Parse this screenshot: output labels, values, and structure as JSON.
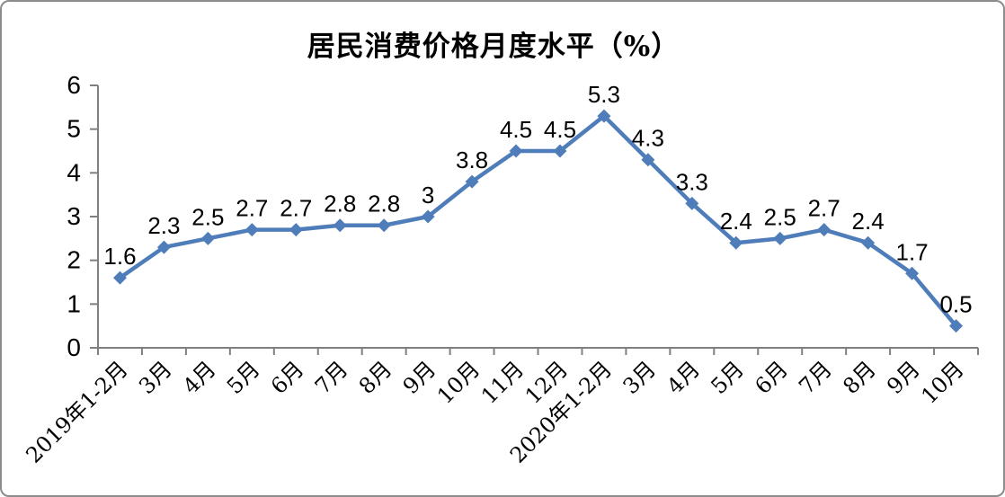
{
  "frame": {
    "background": "#FFFFFF",
    "border_color": "#8C8C8C"
  },
  "chart_data": {
    "type": "line",
    "title": "居民消费价格月度水平（%）",
    "categories": [
      "2019年1-2月",
      "3月",
      "4月",
      "5月",
      "6月",
      "7月",
      "8月",
      "9月",
      "10月",
      "11月",
      "12月",
      "2020年1-2月",
      "3月",
      "4月",
      "5月",
      "6月",
      "7月",
      "8月",
      "9月",
      "10月"
    ],
    "values": [
      1.6,
      2.3,
      2.5,
      2.7,
      2.7,
      2.8,
      2.8,
      3,
      3.8,
      4.5,
      4.5,
      5.3,
      4.3,
      3.3,
      2.4,
      2.5,
      2.7,
      2.4,
      1.7,
      0.5
    ],
    "data_labels": [
      "1.6",
      "2.3",
      "2.5",
      "2.7",
      "2.7",
      "2.8",
      "2.8",
      "3",
      "3.8",
      "4.5",
      "4.5",
      "5.3",
      "4.3",
      "3.3",
      "2.4",
      "2.5",
      "2.7",
      "2.4",
      "1.7",
      "0.5"
    ],
    "xlabel": "",
    "ylabel": "",
    "ylim": [
      0,
      6
    ],
    "yticks": [
      0,
      1,
      2,
      3,
      4,
      5,
      6
    ],
    "grid": false,
    "legend": "none",
    "show_data_labels": true,
    "x_labels_rotated_degrees": 45,
    "line_color": "#4E7DBA",
    "marker": "diamond",
    "axis_color": "#808080",
    "label_color": "#000000"
  }
}
